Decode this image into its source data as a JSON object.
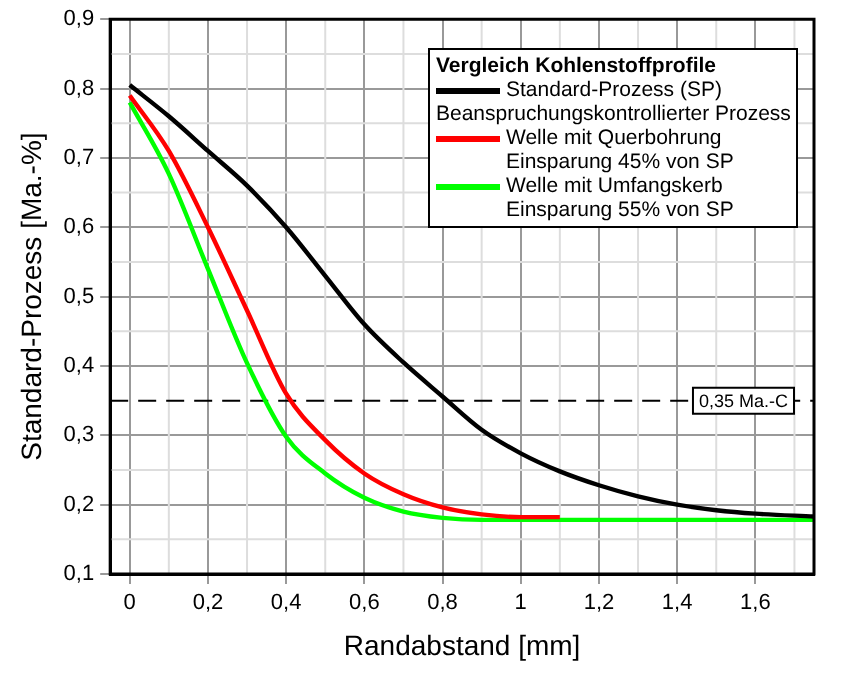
{
  "chart_data": {
    "type": "line",
    "xlabel": "Randabstand [mm]",
    "ylabel": "Standard-Prozess [Ma.-%]",
    "legend_title": "Vergleich Kohlenstoffprofile",
    "annotations": [
      "Beanspruchungskontrollierter Prozess"
    ],
    "series": [
      {
        "name": "Standard-Prozess (SP)",
        "color": "#000000",
        "x": [
          0,
          0.1,
          0.2,
          0.3,
          0.4,
          0.5,
          0.6,
          0.7,
          0.8,
          0.9,
          1.0,
          1.1,
          1.2,
          1.3,
          1.4,
          1.5,
          1.6,
          1.75
        ],
        "values": [
          0.805,
          0.76,
          0.71,
          0.66,
          0.6,
          0.53,
          0.46,
          0.405,
          0.356,
          0.308,
          0.274,
          0.248,
          0.228,
          0.212,
          0.2,
          0.192,
          0.187,
          0.183
        ]
      },
      {
        "name": "Welle mit Querbohrung\nEinsparung 45% von SP",
        "color": "#ff0000",
        "x": [
          0,
          0.1,
          0.2,
          0.3,
          0.4,
          0.5,
          0.6,
          0.7,
          0.8,
          0.9,
          1.0,
          1.1
        ],
        "values": [
          0.79,
          0.71,
          0.6,
          0.48,
          0.36,
          0.293,
          0.245,
          0.215,
          0.196,
          0.186,
          0.182,
          0.182
        ]
      },
      {
        "name": "Welle mit Umfangskerb\nEinsparung 55% von SP",
        "color": "#00ff00",
        "x": [
          0,
          0.1,
          0.2,
          0.3,
          0.4,
          0.5,
          0.6,
          0.7,
          0.8,
          0.9,
          1.0,
          1.2,
          1.4,
          1.6,
          1.75
        ],
        "values": [
          0.78,
          0.677,
          0.54,
          0.404,
          0.298,
          0.245,
          0.21,
          0.19,
          0.181,
          0.178,
          0.178,
          0.178,
          0.178,
          0.178,
          0.178
        ]
      }
    ],
    "ref_lines": [
      {
        "axis": "y",
        "value": 0.35,
        "label": "0,35 Ma.-C",
        "line_style": "dashed"
      }
    ],
    "xlim": [
      -0.05,
      1.75
    ],
    "xticks": [
      {
        "value": 0,
        "label": "0"
      },
      {
        "value": 0.2,
        "label": "0,2"
      },
      {
        "value": 0.4,
        "label": "0,4"
      },
      {
        "value": 0.6,
        "label": "0,6"
      },
      {
        "value": 0.8,
        "label": "0,8"
      },
      {
        "value": 1,
        "label": "1"
      },
      {
        "value": 1.2,
        "label": "1,2"
      },
      {
        "value": 1.4,
        "label": "1,4"
      },
      {
        "value": 1.6,
        "label": "1,6"
      }
    ],
    "ylim": [
      0.1,
      0.9
    ],
    "yticks": [
      {
        "value": 0.1,
        "label": "0,1"
      },
      {
        "value": 0.2,
        "label": "0,2"
      },
      {
        "value": 0.3,
        "label": "0,3"
      },
      {
        "value": 0.4,
        "label": "0,4"
      },
      {
        "value": 0.5,
        "label": "0,5"
      },
      {
        "value": 0.6,
        "label": "0,6"
      },
      {
        "value": 0.7,
        "label": "0,7"
      },
      {
        "value": 0.8,
        "label": "0,8"
      },
      {
        "value": 0.9,
        "label": "0,9"
      }
    ],
    "grid": true,
    "legend": "top right",
    "marker": "none",
    "line_style": "solid"
  }
}
